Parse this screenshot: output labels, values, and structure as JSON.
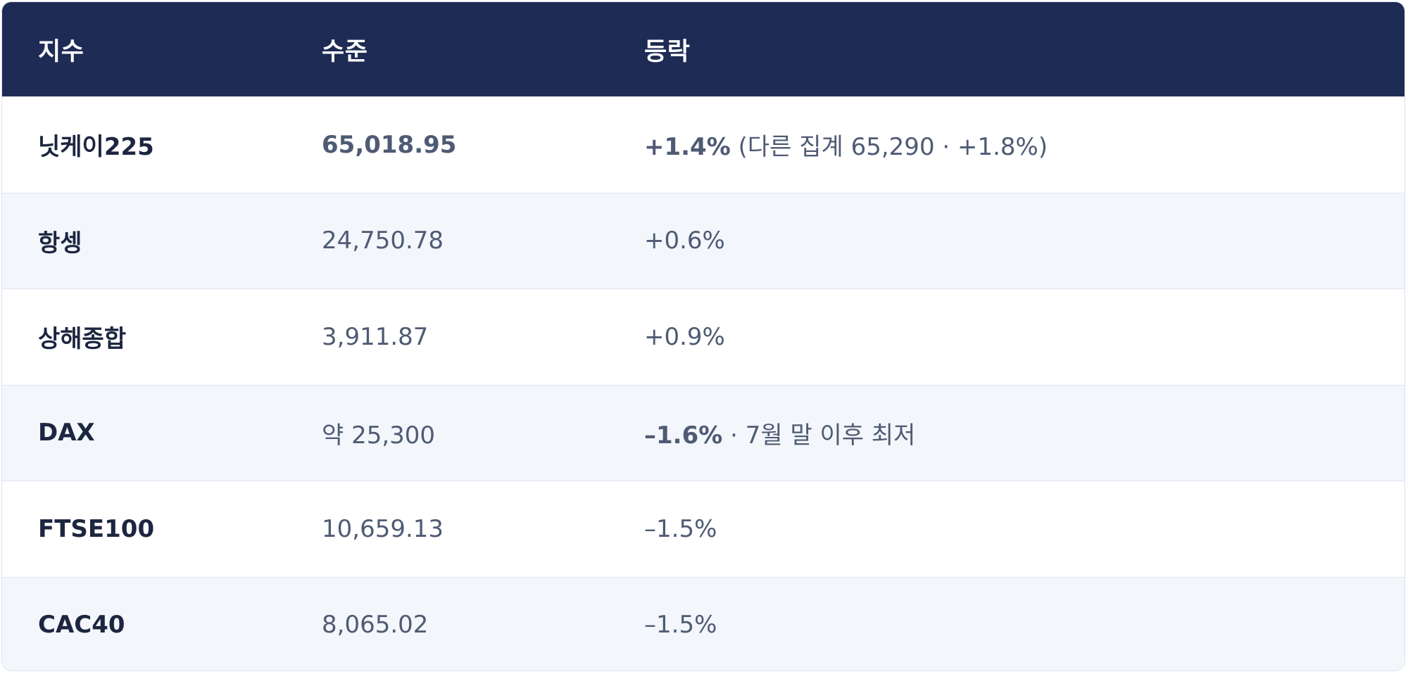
{
  "headers": {
    "index": "지수",
    "level": "수준",
    "change": "등락"
  },
  "rows": [
    {
      "index": "닛케이225",
      "level": "65,018.95",
      "change_main": "+1.4%",
      "change_note": " (다른 집계 65,290 · +1.8%)"
    },
    {
      "index": "항셍",
      "level": "24,750.78",
      "change_main": "+0.6%",
      "change_note": ""
    },
    {
      "index": "상해종합",
      "level": "3,911.87",
      "change_main": "+0.9%",
      "change_note": ""
    },
    {
      "index": "DAX",
      "level": "약 25,300",
      "change_main": "–1.6%",
      "change_note": " · 7월 말 이후 최저"
    },
    {
      "index": "FTSE100",
      "level": "10,659.13",
      "change_main": "–1.5%",
      "change_note": ""
    },
    {
      "index": "CAC40",
      "level": "8,065.02",
      "change_main": "–1.5%",
      "change_note": ""
    }
  ],
  "colors": {
    "header_bg": "#1e2b54",
    "alt_row_bg": "#f3f6fb",
    "text_primary": "#1d2640",
    "text_secondary": "#4f5b74"
  }
}
